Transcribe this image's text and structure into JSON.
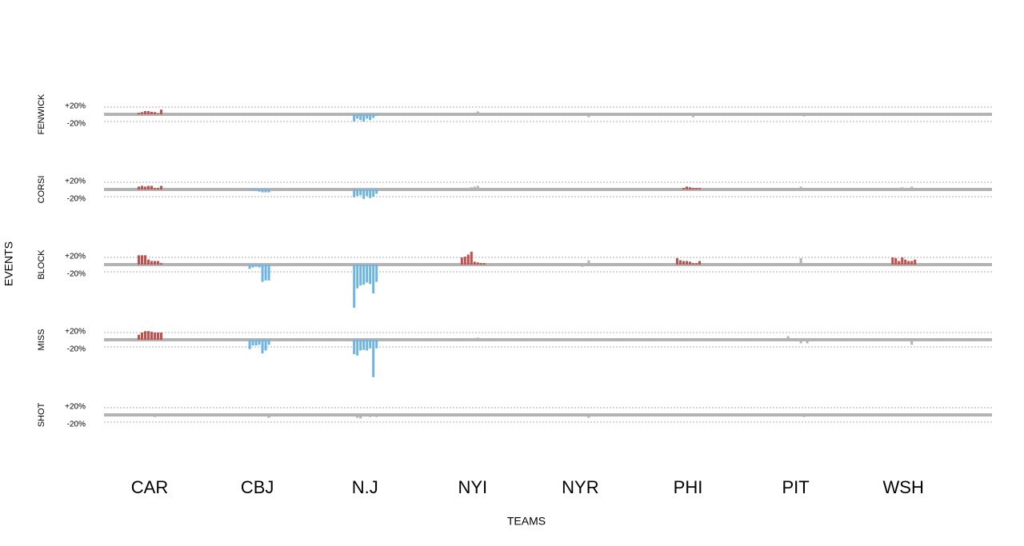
{
  "chart_data": {
    "type": "bar",
    "x_label": "TEAMS",
    "y_label": "EVENTS",
    "categories": [
      "CAR",
      "CBJ",
      "N.J",
      "NYI",
      "NYR",
      "PHI",
      "PIT",
      "WSH"
    ],
    "ylim": [
      -130,
      60
    ],
    "yticks": [
      {
        "value": 20,
        "label": "+20%"
      },
      {
        "value": -20,
        "label": "-20%"
      }
    ],
    "grid": true,
    "panels": [
      {
        "name": "FENWICK",
        "colors": [
          "#c0504d",
          "#b3b3b3",
          "#6cb4e8",
          "#b3b3b3",
          "#b3b3b3",
          "#b3b3b3",
          "#b3b3b3",
          "#b3b3b3"
        ],
        "values": [
          [
            4,
            6,
            9,
            9,
            7,
            6,
            2,
            13
          ],
          [
            0,
            -2,
            0,
            -4,
            -2,
            -4,
            -4,
            0
          ],
          [
            -20,
            -12,
            -16,
            -20,
            -12,
            -16,
            -10,
            -4
          ],
          [
            0,
            0,
            0,
            0,
            0,
            8,
            0,
            0
          ],
          [
            0,
            0,
            0,
            0,
            0,
            0,
            -8,
            0
          ],
          [
            0,
            0,
            0,
            0,
            0,
            -8,
            0,
            0
          ],
          [
            0,
            0,
            0,
            0,
            0,
            0,
            -6,
            0
          ],
          [
            0,
            0,
            0,
            0,
            0,
            0,
            0,
            0
          ]
        ]
      },
      {
        "name": "CORSI",
        "colors": [
          "#c0504d",
          "#6cb4e8",
          "#6cb4e8",
          "#b3b3b3",
          "#b3b3b3",
          "#c0504d",
          "#b3b3b3",
          "#b3b3b3"
        ],
        "values": [
          [
            8,
            10,
            8,
            10,
            10,
            4,
            4,
            10
          ],
          [
            0,
            -2,
            -2,
            -4,
            -6,
            -8,
            -8,
            -8
          ],
          [
            -22,
            -18,
            -16,
            -26,
            -18,
            -24,
            -20,
            -12
          ],
          [
            0,
            0,
            0,
            6,
            8,
            10,
            0,
            0
          ],
          [
            0,
            0,
            0,
            0,
            0,
            4,
            0,
            0
          ],
          [
            0,
            0,
            4,
            8,
            6,
            4,
            4,
            4
          ],
          [
            0,
            0,
            0,
            0,
            0,
            8,
            0,
            0
          ],
          [
            0,
            0,
            0,
            6,
            4,
            4,
            8,
            0
          ]
        ]
      },
      {
        "name": "BLOCK",
        "colors": [
          "#c0504d",
          "#6cb4e8",
          "#6cb4e8",
          "#c0504d",
          "#b3b3b3",
          "#c0504d",
          "#b3b3b3",
          "#c0504d"
        ],
        "values": [
          [
            26,
            26,
            26,
            14,
            10,
            10,
            10,
            4
          ],
          [
            0,
            -12,
            -8,
            -6,
            -8,
            -48,
            -44,
            -44
          ],
          [
            -120,
            -66,
            -58,
            -56,
            -50,
            -54,
            -80,
            -48
          ],
          [
            20,
            22,
            28,
            36,
            8,
            6,
            4,
            4
          ],
          [
            0,
            0,
            0,
            0,
            -6,
            4,
            12,
            0
          ],
          [
            18,
            12,
            10,
            10,
            8,
            4,
            4,
            10
          ],
          [
            0,
            0,
            0,
            0,
            0,
            18,
            0,
            0
          ],
          [
            20,
            18,
            10,
            20,
            14,
            10,
            10,
            14
          ]
        ]
      },
      {
        "name": "MISS",
        "colors": [
          "#c0504d",
          "#6cb4e8",
          "#6cb4e8",
          "#b3b3b3",
          "#b3b3b3",
          "#b3b3b3",
          "#b3b3b3",
          "#b3b3b3"
        ],
        "values": [
          [
            14,
            20,
            24,
            24,
            22,
            20,
            20,
            20
          ],
          [
            0,
            -26,
            -16,
            -16,
            -14,
            -38,
            -30,
            -14
          ],
          [
            -40,
            -44,
            -30,
            -28,
            -30,
            -24,
            -104,
            -24
          ],
          [
            0,
            0,
            0,
            0,
            0,
            6,
            0,
            0
          ],
          [
            0,
            0,
            0,
            0,
            0,
            0,
            0,
            0
          ],
          [
            0,
            0,
            0,
            0,
            0,
            0,
            0,
            0
          ],
          [
            4,
            10,
            0,
            0,
            0,
            -10,
            0,
            -10
          ],
          [
            0,
            0,
            0,
            0,
            0,
            0,
            -14,
            0
          ]
        ]
      },
      {
        "name": "SHOT",
        "colors": [
          "#b3b3b3",
          "#b3b3b3",
          "#b3b3b3",
          "#b3b3b3",
          "#b3b3b3",
          "#b3b3b3",
          "#b3b3b3",
          "#b3b3b3"
        ],
        "values": [
          [
            0,
            0,
            0,
            0,
            0,
            -6,
            0,
            0
          ],
          [
            0,
            0,
            0,
            0,
            4,
            2,
            0,
            -8
          ],
          [
            0,
            -8,
            -10,
            0,
            0,
            -6,
            -4,
            -6
          ],
          [
            0,
            0,
            0,
            0,
            0,
            0,
            0,
            0
          ],
          [
            0,
            0,
            0,
            -4,
            -4,
            0,
            -8,
            0
          ],
          [
            0,
            0,
            0,
            0,
            0,
            -4,
            0,
            0
          ],
          [
            0,
            0,
            0,
            0,
            0,
            0,
            -6,
            0
          ],
          [
            0,
            0,
            0,
            0,
            0,
            0,
            0,
            0
          ]
        ]
      }
    ]
  }
}
